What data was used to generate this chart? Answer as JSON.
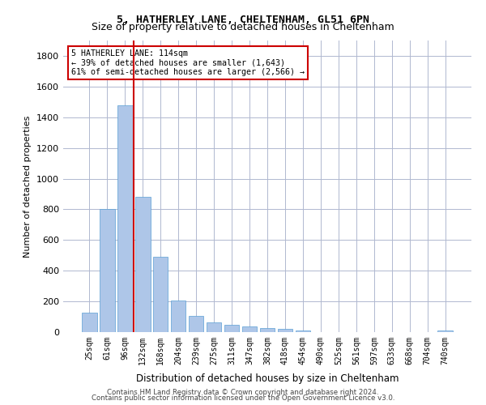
{
  "title1": "5, HATHERLEY LANE, CHELTENHAM, GL51 6PN",
  "title2": "Size of property relative to detached houses in Cheltenham",
  "xlabel": "Distribution of detached houses by size in Cheltenham",
  "ylabel": "Number of detached properties",
  "footer1": "Contains HM Land Registry data © Crown copyright and database right 2024.",
  "footer2": "Contains public sector information licensed under the Open Government Licence v3.0.",
  "annotation_line1": "5 HATHERLEY LANE: 114sqm",
  "annotation_line2": "← 39% of detached houses are smaller (1,643)",
  "annotation_line3": "61% of semi-detached houses are larger (2,566) →",
  "bar_color": "#aec6e8",
  "bar_edge_color": "#5a9fd4",
  "grid_color": "#b0b8d0",
  "vline_color": "#cc0000",
  "annotation_box_color": "#cc0000",
  "categories": [
    "25sqm",
    "61sqm",
    "96sqm",
    "132sqm",
    "168sqm",
    "204sqm",
    "239sqm",
    "275sqm",
    "311sqm",
    "347sqm",
    "382sqm",
    "418sqm",
    "454sqm",
    "490sqm",
    "525sqm",
    "561sqm",
    "597sqm",
    "633sqm",
    "668sqm",
    "704sqm",
    "740sqm"
  ],
  "values": [
    125,
    800,
    1480,
    880,
    490,
    205,
    105,
    65,
    45,
    35,
    25,
    20,
    12,
    0,
    0,
    0,
    0,
    0,
    0,
    0,
    13
  ],
  "ylim": [
    0,
    1900
  ],
  "yticks": [
    0,
    200,
    400,
    600,
    800,
    1000,
    1200,
    1400,
    1600,
    1800
  ],
  "property_size_sqm": 114,
  "property_bar_index": 2,
  "vline_x": 2.5
}
